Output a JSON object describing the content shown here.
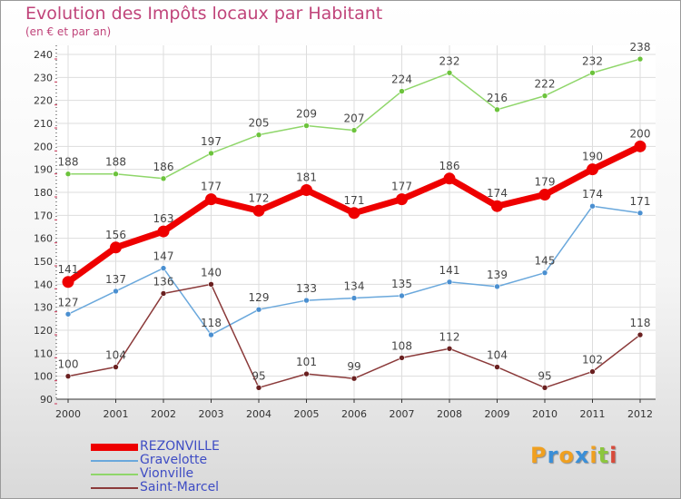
{
  "title": "Evolution des Impôts locaux par Habitant",
  "subtitle": "(en € et par an)",
  "logo": {
    "text": "Proxiti",
    "letters": [
      {
        "ch": "P",
        "color": "#f0a020"
      },
      {
        "ch": "r",
        "color": "#3a8fd8"
      },
      {
        "ch": "o",
        "color": "#f0a020"
      },
      {
        "ch": "x",
        "color": "#3a8fd8"
      },
      {
        "ch": "i",
        "color": "#f0a020"
      },
      {
        "ch": "t",
        "color": "#8cc63f"
      },
      {
        "ch": "i",
        "color": "#d84a3a"
      }
    ]
  },
  "chart_data": {
    "type": "line",
    "categories": [
      "2000",
      "2001",
      "2002",
      "2003",
      "2004",
      "2005",
      "2006",
      "2007",
      "2008",
      "2009",
      "2010",
      "2011",
      "2012"
    ],
    "ylim": [
      90,
      240
    ],
    "yticks": [
      90,
      100,
      110,
      120,
      130,
      140,
      150,
      160,
      170,
      180,
      190,
      200,
      210,
      220,
      230,
      240
    ],
    "ytick_labels": [
      "90",
      "100",
      "110",
      "120",
      "130",
      "140",
      "150",
      "160",
      "170",
      "180",
      "190",
      "200",
      "210",
      "220",
      "230",
      "240"
    ],
    "grid": true,
    "legend_position": "bottom-left",
    "series": [
      {
        "name": "Vionville",
        "color": "#8fd66a",
        "marker_color": "#6cc33c",
        "values": [
          188,
          188,
          186,
          197,
          205,
          209,
          207,
          224,
          232,
          216,
          222,
          232,
          238
        ]
      },
      {
        "name": "Gravelotte",
        "color": "#6aa8dc",
        "marker_color": "#4a8fd0",
        "values": [
          127,
          137,
          147,
          118,
          129,
          133,
          134,
          135,
          141,
          139,
          145,
          174,
          171
        ]
      },
      {
        "name": "Saint-Marcel",
        "color": "#8b3a3a",
        "marker_color": "#6a2020",
        "values": [
          100,
          104,
          136,
          140,
          95,
          101,
          99,
          108,
          112,
          104,
          95,
          102,
          118
        ]
      },
      {
        "name": "REZONVILLE",
        "color": "#ee0000",
        "marker_color": "#ee0000",
        "values": [
          141,
          156,
          163,
          177,
          172,
          181,
          171,
          177,
          186,
          174,
          179,
          190,
          200
        ]
      }
    ],
    "legend_order": [
      "REZONVILLE",
      "Gravelotte",
      "Vionville",
      "Saint-Marcel"
    ]
  }
}
